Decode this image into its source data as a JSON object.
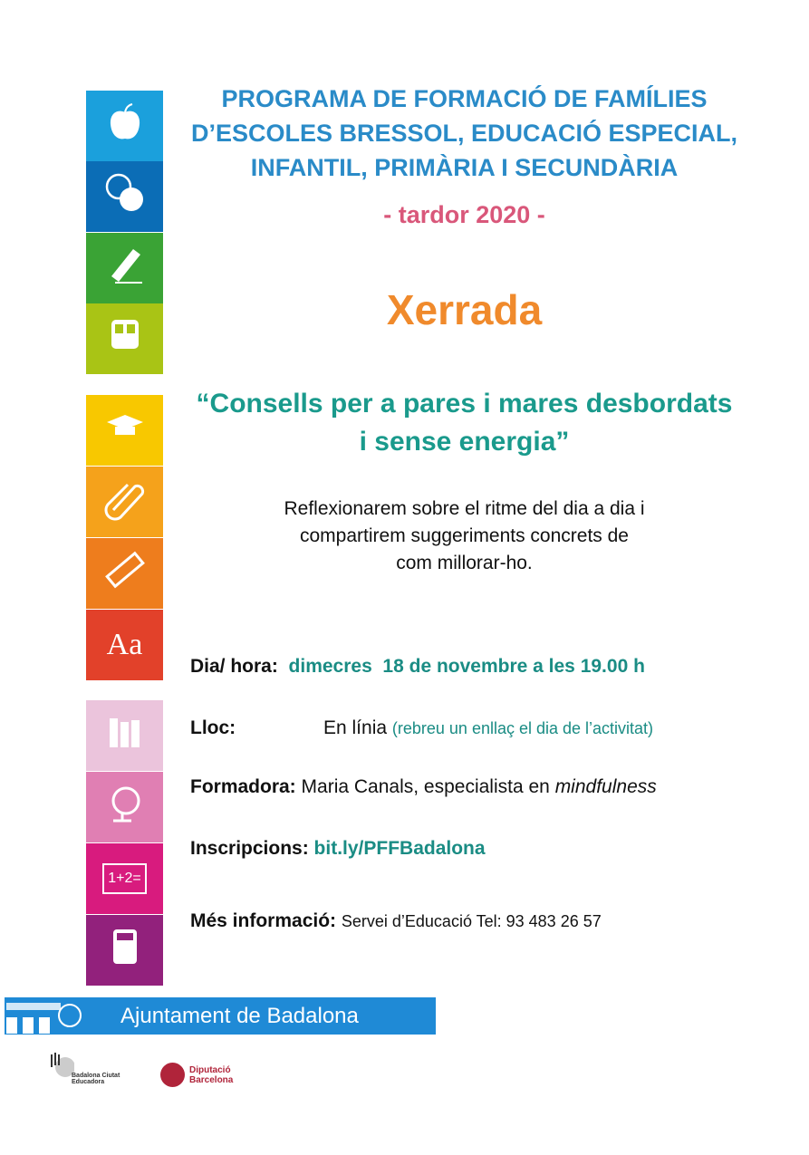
{
  "header": {
    "title_lines": [
      "PROGRAMA DE FORMACIÓ DE FAMÍLIES",
      "D’ESCOLES BRESSOL, EDUCACIÓ ESPECIAL,",
      "INFANTIL, PRIMÀRIA I SECUNDÀRIA"
    ],
    "season": "- tardor 2020 -"
  },
  "event": {
    "type": "Xerrada",
    "title_lines": [
      "“Consells per a pares i mares desbordats",
      "i sense energia”"
    ],
    "description_lines": [
      "Reflexionarem sobre el ritme del dia a dia i",
      "compartirem suggeriments concrets de",
      "com millorar-ho."
    ]
  },
  "details": {
    "date": {
      "label": "Dia/ hora:",
      "value": "dimecres  18 de novembre a les 19.00 h"
    },
    "place": {
      "label": "Lloc:",
      "value": "En línia",
      "note": "(rebreu un enllaç el dia de l’activitat)"
    },
    "trainer": {
      "label": "Formadora:",
      "value": "Maria Canals, especialista en",
      "emphasis": "mindfulness"
    },
    "registration": {
      "label": "Inscripcions:",
      "value": "bit.ly/PFFBadalona"
    },
    "info": {
      "label": "Més informació:",
      "value": "Servei d’Educació Tel: 93 483 26 57"
    }
  },
  "footer": {
    "main_logo": "Ajuntament de Badalona",
    "logo_badalona": "Badalona Ciutat Educadora",
    "logo_diputacio": [
      "Diputació",
      "Barcelona"
    ]
  },
  "tiles": [
    {
      "icon": "apple-icon",
      "color": "#1ba0dc"
    },
    {
      "icon": "balls-icon",
      "color": "#0b6db6"
    },
    {
      "icon": "pencil-icon",
      "color": "#3aa335"
    },
    {
      "icon": "bus-icon",
      "color": "#a9c415"
    },
    {
      "icon": "graduation-cap-icon",
      "color": "#f8c800"
    },
    {
      "icon": "paperclip-icon",
      "color": "#f5a21b"
    },
    {
      "icon": "ruler-icon",
      "color": "#ee7d1d"
    },
    {
      "icon": "letters-icon",
      "color": "#e2412a",
      "text": "Aa"
    },
    {
      "icon": "books-icon",
      "color": "#ebc4dc"
    },
    {
      "icon": "globe-icon",
      "color": "#e07fb3"
    },
    {
      "icon": "blackboard-icon",
      "color": "#d81b7e",
      "text": "1+2="
    },
    {
      "icon": "calculator-icon",
      "color": "#92217c"
    }
  ]
}
